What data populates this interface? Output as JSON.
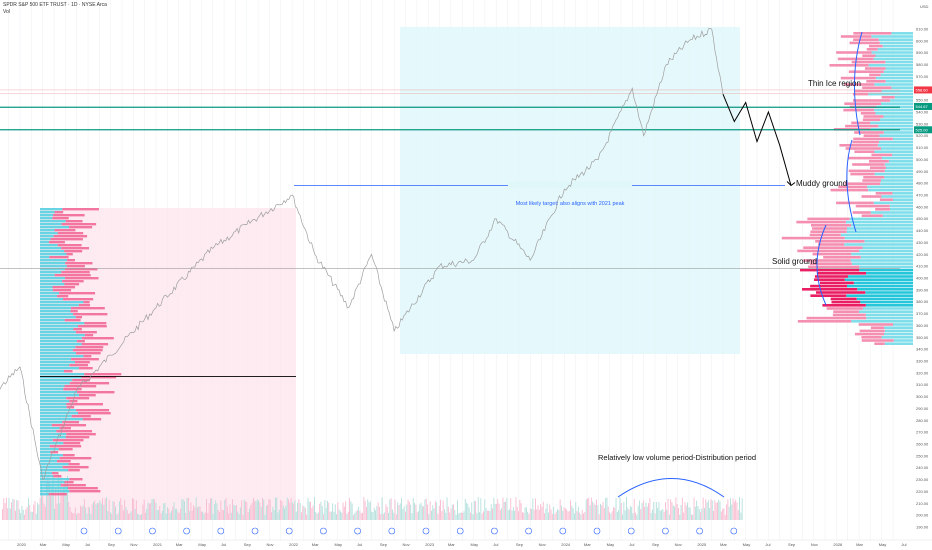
{
  "header": {
    "title": "SPDR S&P 500 ETF TRUST · 1D · NYSE Arca",
    "sub": "Vol"
  },
  "axis": {
    "currency": "USD",
    "price_ticks": [
      610,
      600,
      590,
      580,
      570,
      560,
      550,
      540,
      530,
      520,
      510,
      500,
      490,
      480,
      470,
      460,
      450,
      440,
      430,
      420,
      410,
      400,
      390,
      380,
      370,
      360,
      350,
      340,
      330,
      320,
      310,
      300,
      290,
      280,
      270,
      260,
      250,
      240,
      230,
      220,
      210,
      200,
      190
    ],
    "time_ticks": [
      "2020",
      "Mar",
      "May",
      "Jul",
      "Sep",
      "Nov",
      "2021",
      "Mar",
      "May",
      "Jul",
      "Sep",
      "Nov",
      "2022",
      "Mar",
      "May",
      "Jul",
      "Sep",
      "Nov",
      "2023",
      "Mar",
      "May",
      "Jul",
      "Sep",
      "Nov",
      "2024",
      "Mar",
      "May",
      "Jul",
      "Sep",
      "Nov",
      "2025",
      "Mar",
      "May",
      "Jul",
      "Sep",
      "Nov",
      "2026",
      "Mar",
      "May",
      "Jul"
    ],
    "price_badges": [
      {
        "label": "558.60",
        "color": "#f23645"
      },
      {
        "label": "544.67",
        "color": "#089981"
      },
      {
        "label": "525.00",
        "color": "#089981"
      }
    ]
  },
  "annotations": {
    "target": "Most likely target: also aligns with 2021 peak",
    "thin_ice": "Thin Ice region",
    "muddy": "Muddy ground",
    "solid": "Solid ground",
    "low_volume": "Relatively low volume period-Distribution period"
  },
  "colors": {
    "teal": "#089981",
    "blue": "#2962ff",
    "pink_zone": "#fce4ec",
    "cyan_zone": "#e0f7fa",
    "vp_up": "#4dd0e1",
    "vp_down": "#f06292"
  },
  "chart_data": {
    "type": "line",
    "title": "SPDR S&P 500 ETF TRUST · 1D · NYSE Arca",
    "x": [
      "2019-10",
      "2020-01",
      "2020-03",
      "2020-06",
      "2020-09",
      "2021-01",
      "2021-06",
      "2021-09",
      "2022-01",
      "2022-03",
      "2022-06",
      "2022-08",
      "2022-10",
      "2023-02",
      "2023-05",
      "2023-07",
      "2023-10",
      "2024-01",
      "2024-04",
      "2024-07",
      "2024-08",
      "2024-10",
      "2024-12",
      "2025-02",
      "2025-03"
    ],
    "series": [
      {
        "values": [
          295,
          325,
          230,
          305,
          335,
          375,
          425,
          445,
          470,
          420,
          375,
          420,
          355,
          410,
          415,
          450,
          415,
          475,
          500,
          560,
          520,
          580,
          600,
          610,
          555
        ]
      }
    ],
    "ylim": [
      190,
      615
    ],
    "levels": [
      {
        "price": 544,
        "label": "544.67"
      },
      {
        "price": 525,
        "label": "525.00"
      },
      {
        "price": 478,
        "label": "Most likely target: also aligns with 2021 peak"
      },
      {
        "price": 408,
        "label": ""
      },
      {
        "price": 317,
        "label": ""
      }
    ],
    "projection": [
      {
        "x": "2025-03",
        "y": 555
      },
      {
        "x": "2025-04",
        "y": 532
      },
      {
        "x": "2025-05",
        "y": 548
      },
      {
        "x": "2025-06",
        "y": 515
      },
      {
        "x": "2025-07",
        "y": 540
      },
      {
        "x": "2025-08",
        "y": 512
      },
      {
        "x": "2025-09",
        "y": 478
      }
    ]
  }
}
